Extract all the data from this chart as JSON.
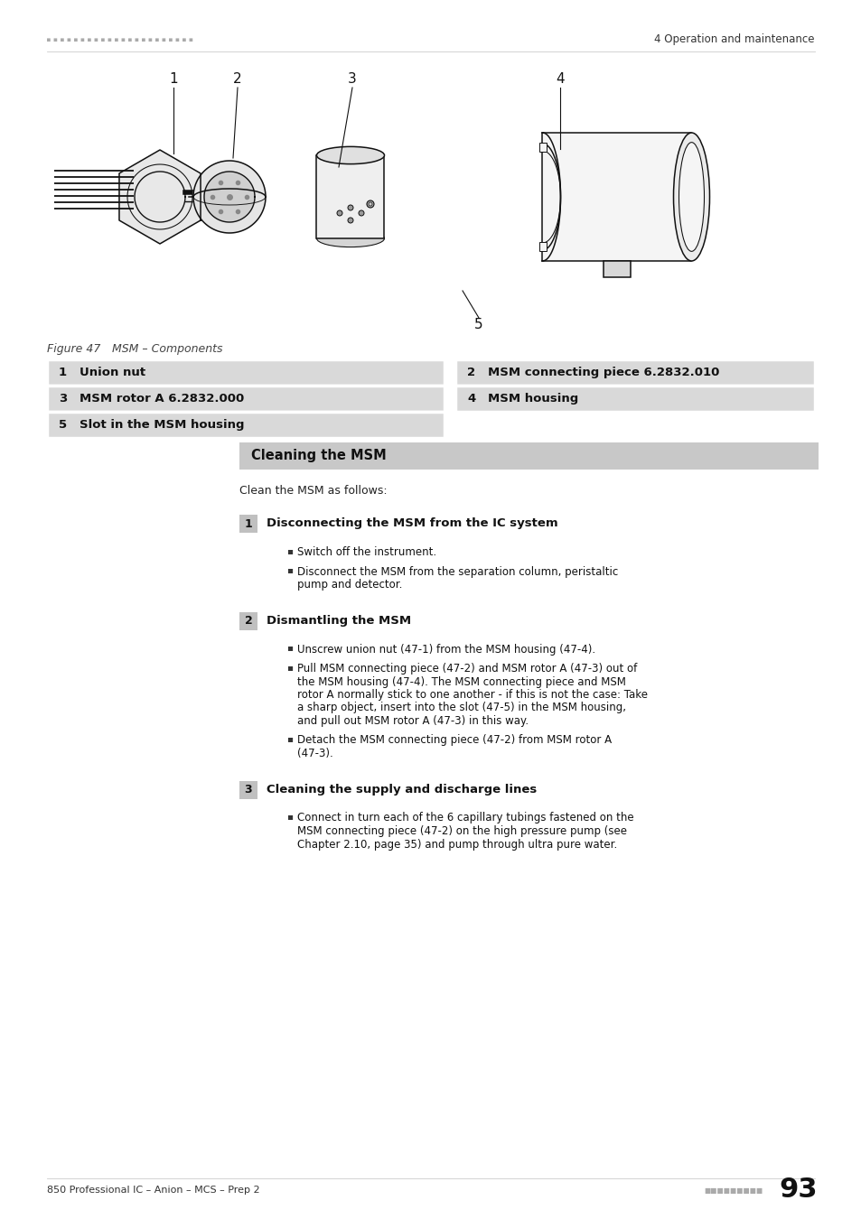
{
  "page_bg": "#ffffff",
  "header_text_right": "4 Operation and maintenance",
  "figure_caption_italic": "Figure 47",
  "figure_caption_rest": "    MSM – Components",
  "table_bg": "#d9d9d9",
  "table_rows": [
    {
      "num": "1",
      "left": "Union nut",
      "num2": "2",
      "right": "MSM connecting piece 6.2832.010"
    },
    {
      "num": "3",
      "left": "MSM rotor A 6.2832.000",
      "num2": "4",
      "right": "MSM housing"
    },
    {
      "num": "5",
      "left": "Slot in the MSM housing",
      "num2": null,
      "right": null
    }
  ],
  "section_header_text": "Cleaning the MSM",
  "section_header_bg": "#c8c8c8",
  "intro": "Clean the MSM as follows:",
  "step_bg": "#c0c0c0",
  "steps": [
    {
      "num": "1",
      "title": "Disconnecting the MSM from the IC system",
      "bullets": [
        [
          "Switch off the instrument."
        ],
        [
          "Disconnect the MSM from the separation column, peristaltic",
          "pump and detector."
        ]
      ]
    },
    {
      "num": "2",
      "title": "Dismantling the MSM",
      "bullets": [
        [
          "Unscrew union nut (47-",
          "1",
          ") from the MSM housing (47-",
          "4",
          ")."
        ],
        [
          "Pull MSM connecting piece (47-",
          "2",
          ") and MSM rotor A (47-",
          "3",
          ") out of",
          "the MSM housing (47-",
          "4",
          "). The MSM connecting piece and MSM",
          "rotor A normally stick to one another - if this is not the case: Take",
          "a sharp object, insert into the slot (47-",
          "5",
          ") in the MSM housing,",
          "and pull out MSM rotor A (47-",
          "3",
          ") in this way."
        ],
        [
          "Detach the MSM connecting piece (47-",
          "2",
          ") from MSM rotor A",
          "(47-",
          "3",
          ")."
        ]
      ]
    },
    {
      "num": "3",
      "title": "Cleaning the supply and discharge lines",
      "bullets": [
        [
          "Connect in turn each of the 6 capillary tubings fastened on the",
          "MSM connecting piece (47-",
          "2",
          ") on the high pressure pump ",
          "see",
          "Chapter 2.10, page 35",
          " and pump through ultra pure water."
        ]
      ]
    }
  ],
  "footer_left": "850 Professional IC – Anion – MCS – Prep 2",
  "footer_page": "93"
}
